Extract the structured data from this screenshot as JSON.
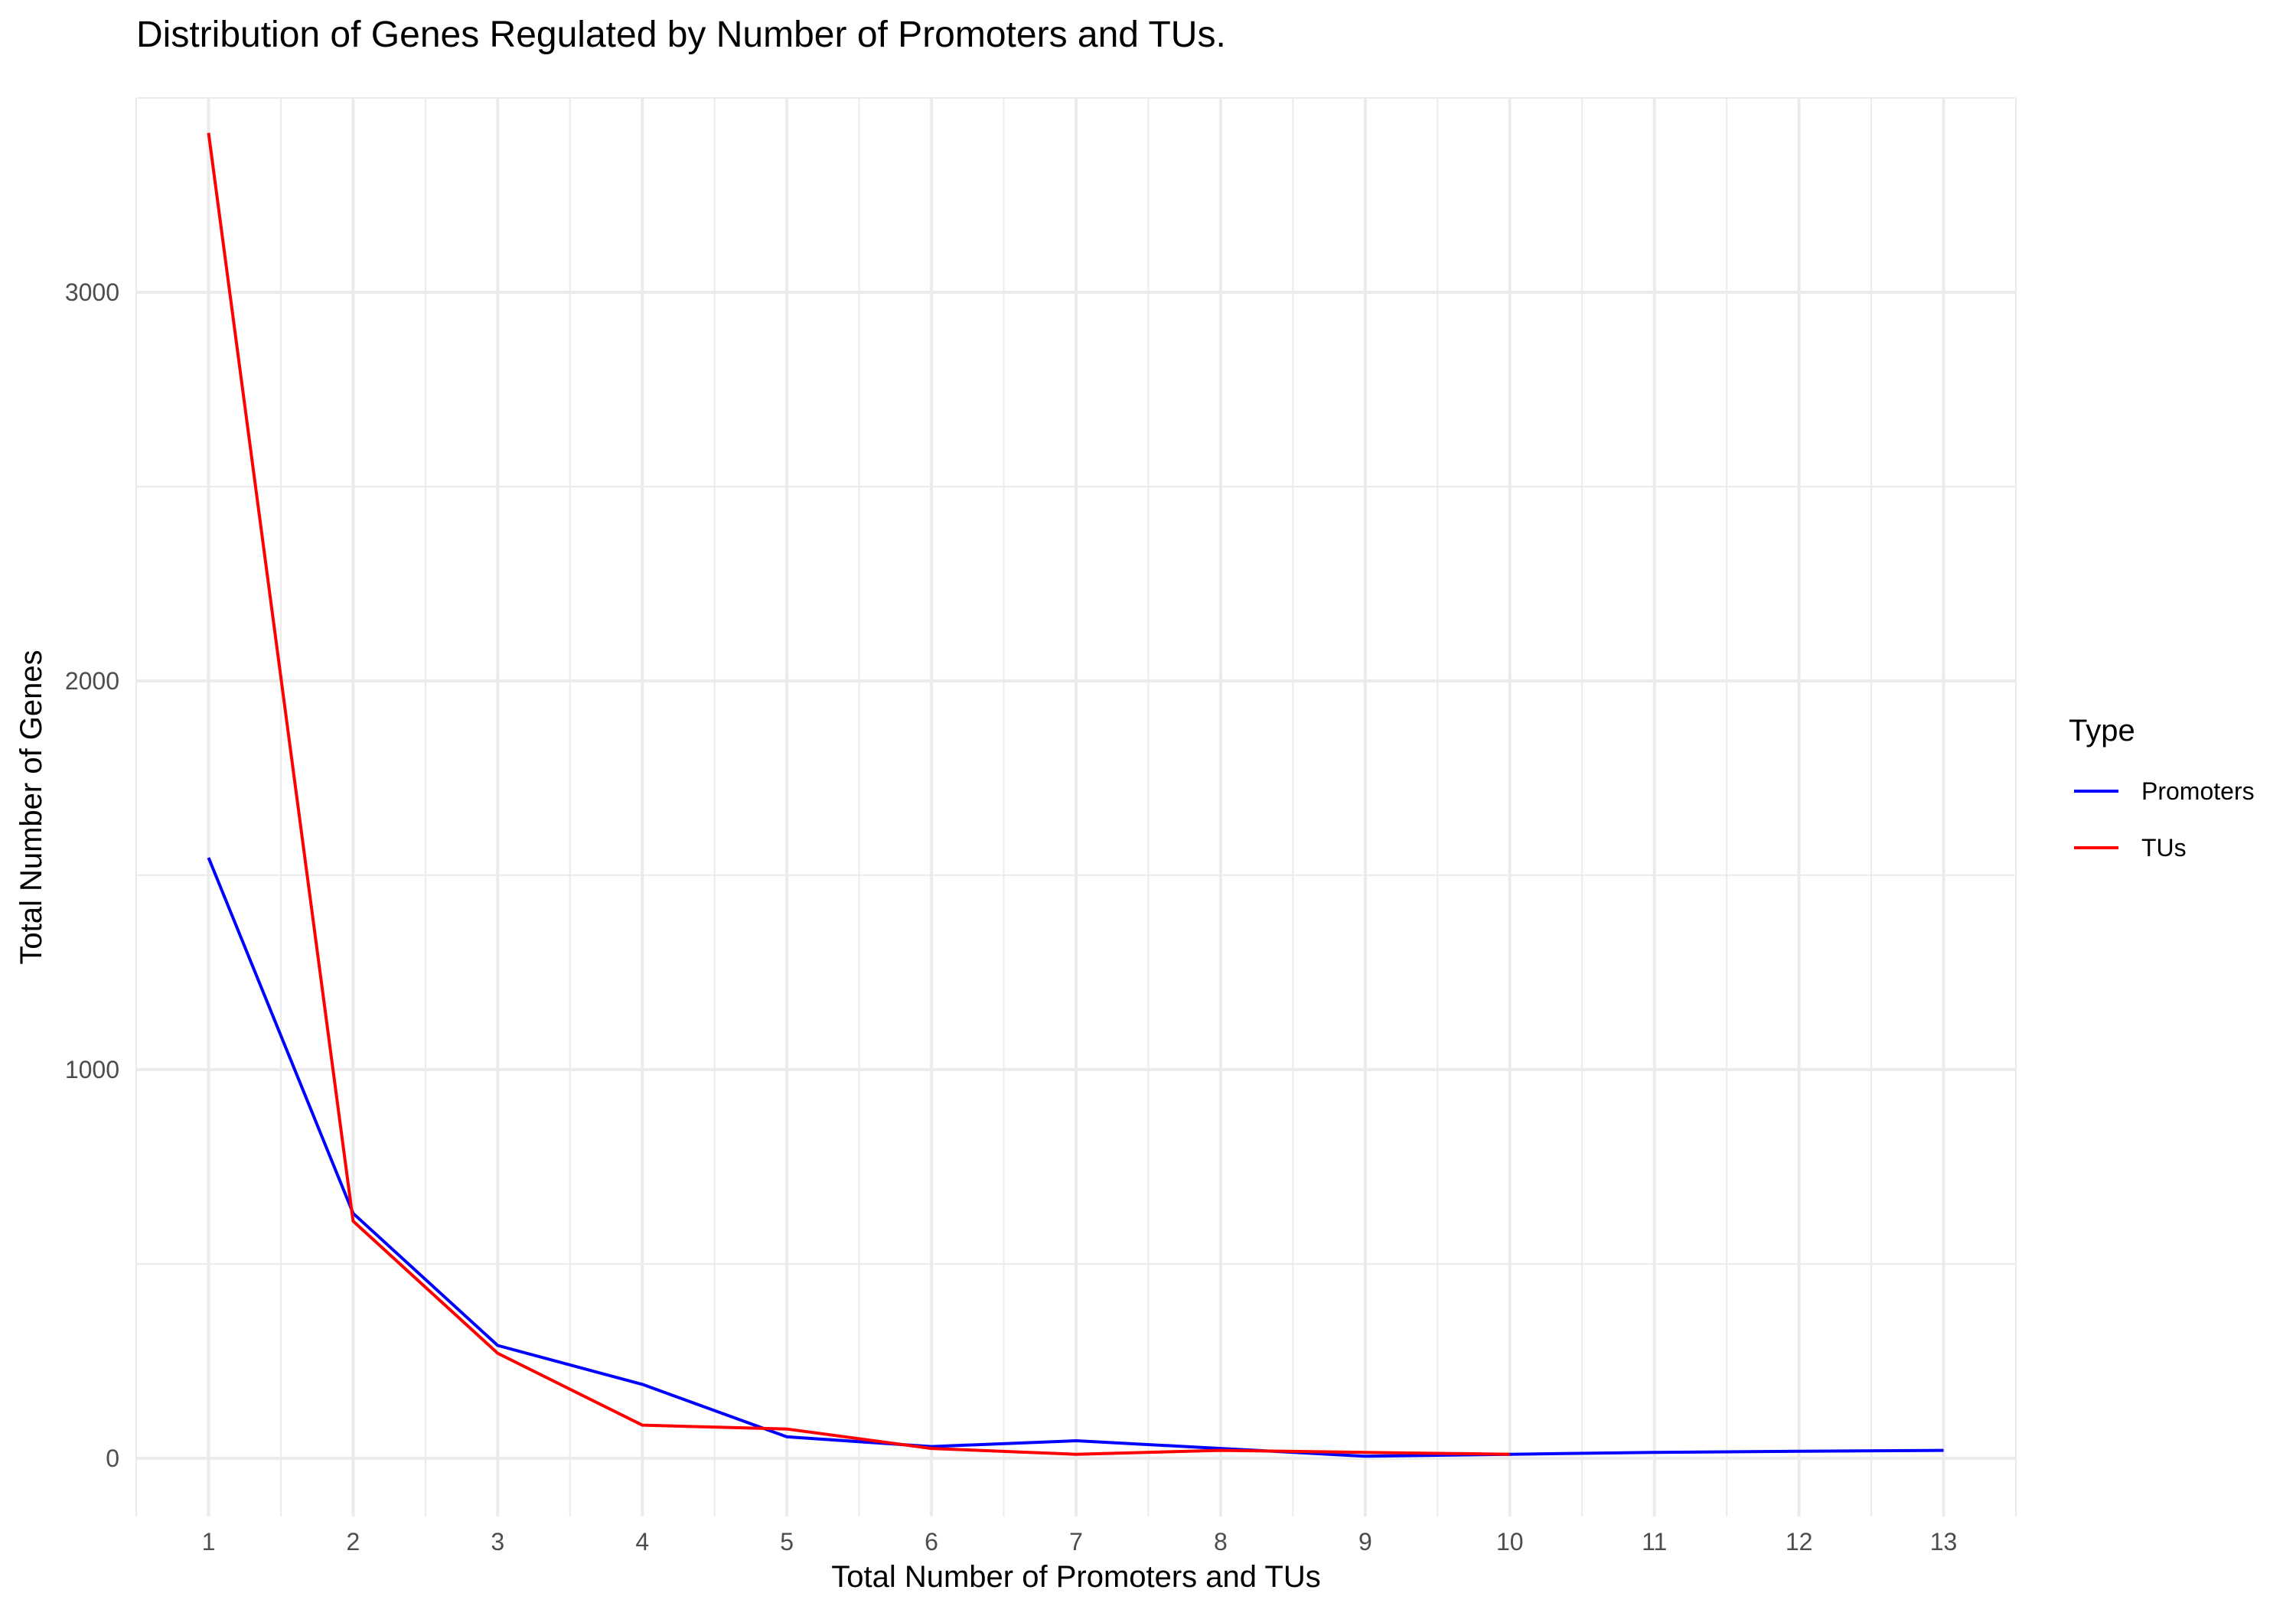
{
  "chart_data": {
    "type": "line",
    "title": "Distribution of Genes Regulated by Number of Promoters and TUs.",
    "xlabel": "Total Number of Promoters and TUs",
    "ylabel": "Total Number of Genes",
    "xlim": [
      0.5,
      13.5
    ],
    "ylim": [
      -150,
      3500
    ],
    "x_ticks": [
      1,
      2,
      3,
      4,
      5,
      6,
      7,
      8,
      9,
      10,
      11,
      12,
      13
    ],
    "y_ticks": [
      0,
      1000,
      2000,
      3000
    ],
    "grid": true,
    "legend": {
      "title": "Type",
      "position": "right"
    },
    "series": [
      {
        "name": "Promoters",
        "color": "#0000ff",
        "x": [
          1,
          2,
          3,
          4,
          5,
          6,
          7,
          8,
          9,
          10,
          11,
          12,
          13
        ],
        "y": [
          1545,
          630,
          290,
          190,
          55,
          30,
          45,
          25,
          5,
          10,
          15,
          18,
          20
        ]
      },
      {
        "name": "TUs",
        "color": "#ff0000",
        "x": [
          1,
          2,
          3,
          4,
          5,
          6,
          7,
          8,
          9,
          10
        ],
        "y": [
          3410,
          610,
          270,
          85,
          75,
          25,
          10,
          20,
          15,
          10
        ]
      }
    ]
  }
}
